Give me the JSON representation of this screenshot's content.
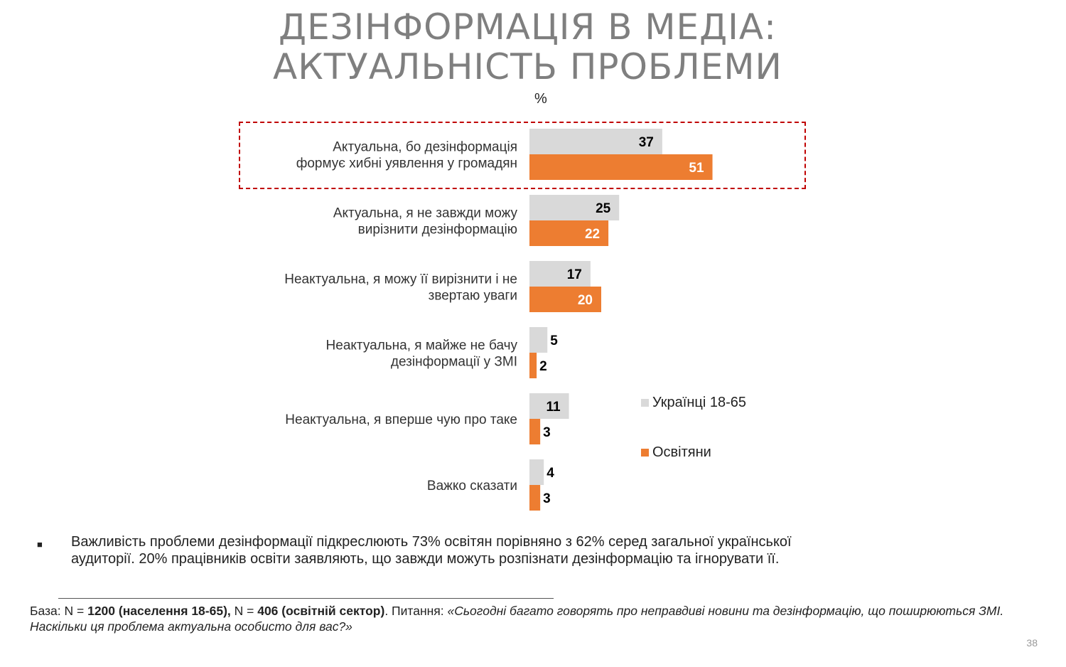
{
  "title": {
    "line1": "ДЕЗІНФОРМАЦІЯ В МЕДІА:",
    "line2": "АКТУАЛЬНІСТЬ ПРОБЛЕМИ"
  },
  "unit_label": "%",
  "colors": {
    "grey": "#d9d9d9",
    "orange": "#ed7d31",
    "highlight": "#c00000"
  },
  "chart_data": {
    "type": "bar",
    "orientation": "horizontal",
    "categories": [
      [
        "Актуальна, бо дезінформація",
        "формує хибні уявлення у громадян"
      ],
      [
        "Актуальна, я не завжди можу",
        "вирізнити дезінформацію"
      ],
      [
        "Неактуальна, я можу її вирізнити і не",
        "звертаю уваги"
      ],
      [
        "Неактуальна, я майже не бачу",
        "дезінформації у ЗМІ"
      ],
      [
        "Неактуальна, я вперше чую про таке"
      ],
      [
        "Важко сказати"
      ]
    ],
    "series": [
      {
        "name": "Українці 18-65",
        "color": "#d9d9d9",
        "values": [
          37,
          25,
          17,
          5,
          11,
          4
        ]
      },
      {
        "name": "Освітяни",
        "color": "#ed7d31",
        "values": [
          51,
          22,
          20,
          2,
          3,
          3
        ]
      }
    ],
    "xlim": [
      0,
      100
    ],
    "highlighted_category_index": 0,
    "legend_position": "right"
  },
  "bullet": {
    "mark": "■",
    "text": "Важливість проблеми дезінформації підкреслюють 73% освітян порівняно з 62% серед загальної української аудиторії. 20% працівників освіти заявляють, що завжди можуть розпізнати дезінформацію та ігнорувати її."
  },
  "base_note": {
    "prefix": "База: N = ",
    "n1": "1200 (населення 18-65),",
    "mid": " N = ",
    "n2": "406 (освітній сектор)",
    "question_label": ". Питання: ",
    "question": "«Сьогодні багато говорять про неправдиві новини та дезінформацію, що поширюються ЗМІ. Наскільки ця проблема актуальна особисто для вас?»"
  },
  "page_number": "38"
}
